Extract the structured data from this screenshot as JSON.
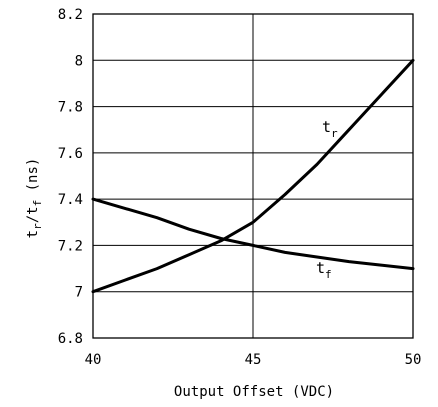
{
  "chart_data": {
    "type": "line",
    "xlabel": "Output Offset (VDC)",
    "ylabel": {
      "t1": "t",
      "s1": "r",
      "slash": "/",
      "t2": "t",
      "s2": "f",
      "unit": " (ns)"
    },
    "xlim": [
      40,
      50
    ],
    "ylim": [
      6.8,
      8.2
    ],
    "xticks": [
      "40",
      "45",
      "50"
    ],
    "yticks": [
      "6.8",
      "7",
      "7.2",
      "7.4",
      "7.6",
      "7.8",
      "8",
      "8.2"
    ],
    "grid": true,
    "series": [
      {
        "name": "tr",
        "label_main": "t",
        "label_sub": "r",
        "x": [
          40,
          41,
          42,
          43,
          44,
          45,
          46,
          47,
          48,
          49,
          50
        ],
        "y": [
          7.0,
          7.05,
          7.1,
          7.16,
          7.22,
          7.3,
          7.42,
          7.55,
          7.7,
          7.85,
          8.0
        ]
      },
      {
        "name": "tf",
        "label_main": "t",
        "label_sub": "f",
        "x": [
          40,
          41,
          42,
          43,
          44,
          45,
          46,
          47,
          48,
          49,
          50
        ],
        "y": [
          7.4,
          7.36,
          7.32,
          7.27,
          7.23,
          7.2,
          7.17,
          7.15,
          7.13,
          7.115,
          7.1
        ]
      }
    ]
  }
}
